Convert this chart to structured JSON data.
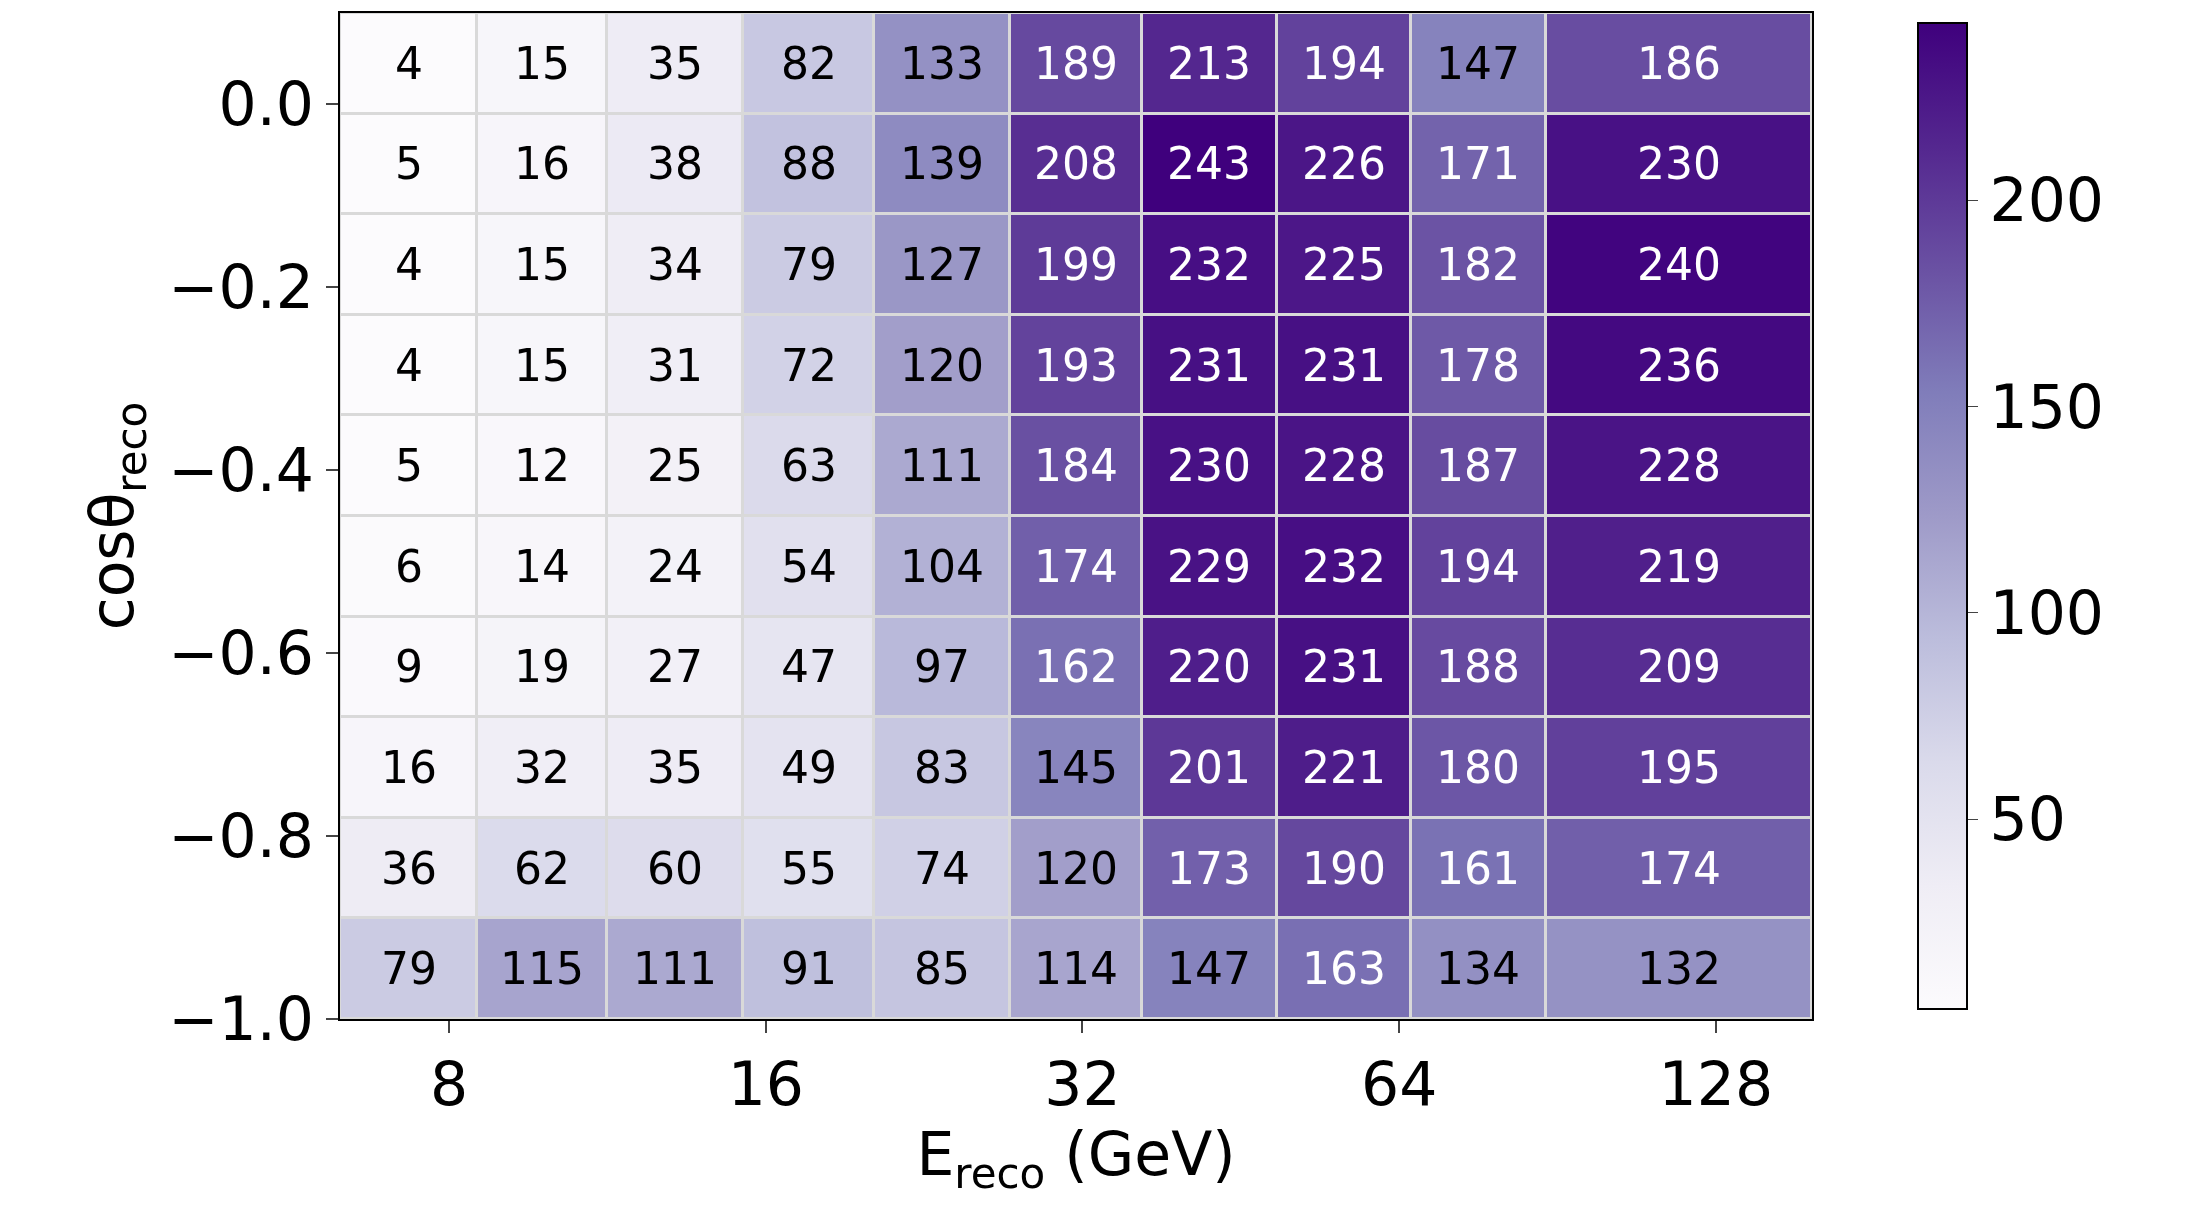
{
  "chart_data": {
    "type": "heatmap",
    "xlabel": "E$_{reco}$ (GeV)",
    "ylabel": "cosθ$_{reco}$",
    "x": [
      7.32,
      9.8,
      13.11,
      17.57,
      23.54,
      31.57,
      42.25,
      56.68,
      76.12,
      118.05
    ],
    "y": [
      0.045,
      -0.065,
      -0.175,
      -0.285,
      -0.395,
      -0.505,
      -0.615,
      -0.725,
      -0.835,
      -0.945
    ],
    "cells": [
      [
        4,
        15,
        35,
        82,
        133,
        189,
        213,
        194,
        147,
        186
      ],
      [
        5,
        16,
        38,
        88,
        139,
        208,
        243,
        226,
        171,
        230
      ],
      [
        4,
        15,
        34,
        79,
        127,
        199,
        232,
        225,
        182,
        240
      ],
      [
        4,
        15,
        31,
        72,
        120,
        193,
        231,
        231,
        178,
        236
      ],
      [
        5,
        12,
        25,
        63,
        111,
        184,
        230,
        228,
        187,
        228
      ],
      [
        6,
        14,
        24,
        54,
        104,
        174,
        229,
        232,
        194,
        219
      ],
      [
        9,
        19,
        27,
        47,
        97,
        162,
        220,
        231,
        188,
        209
      ],
      [
        16,
        32,
        35,
        49,
        83,
        145,
        201,
        221,
        180,
        195
      ],
      [
        36,
        62,
        60,
        55,
        74,
        120,
        173,
        190,
        161,
        174
      ],
      [
        79,
        115,
        111,
        91,
        85,
        114,
        147,
        163,
        134,
        132
      ]
    ],
    "data_labels": true,
    "log": "x",
    "xlim": [
      6.3,
      158
    ],
    "xticks": [
      8,
      16,
      32,
      64,
      128
    ],
    "ylim": [
      -1.0,
      0.1
    ],
    "yticks": [
      {
        "value": -1.0,
        "label": "−1.0"
      },
      {
        "value": -0.8,
        "label": "−0.8"
      },
      {
        "value": -0.6,
        "label": "−0.6"
      },
      {
        "value": -0.4,
        "label": "−0.4"
      },
      {
        "value": -0.2,
        "label": "−0.2"
      },
      {
        "value": 0.0,
        "label": "0.0"
      }
    ],
    "clim": [
      4,
      243
    ],
    "cticks": [
      50,
      100,
      150,
      200
    ]
  }
}
